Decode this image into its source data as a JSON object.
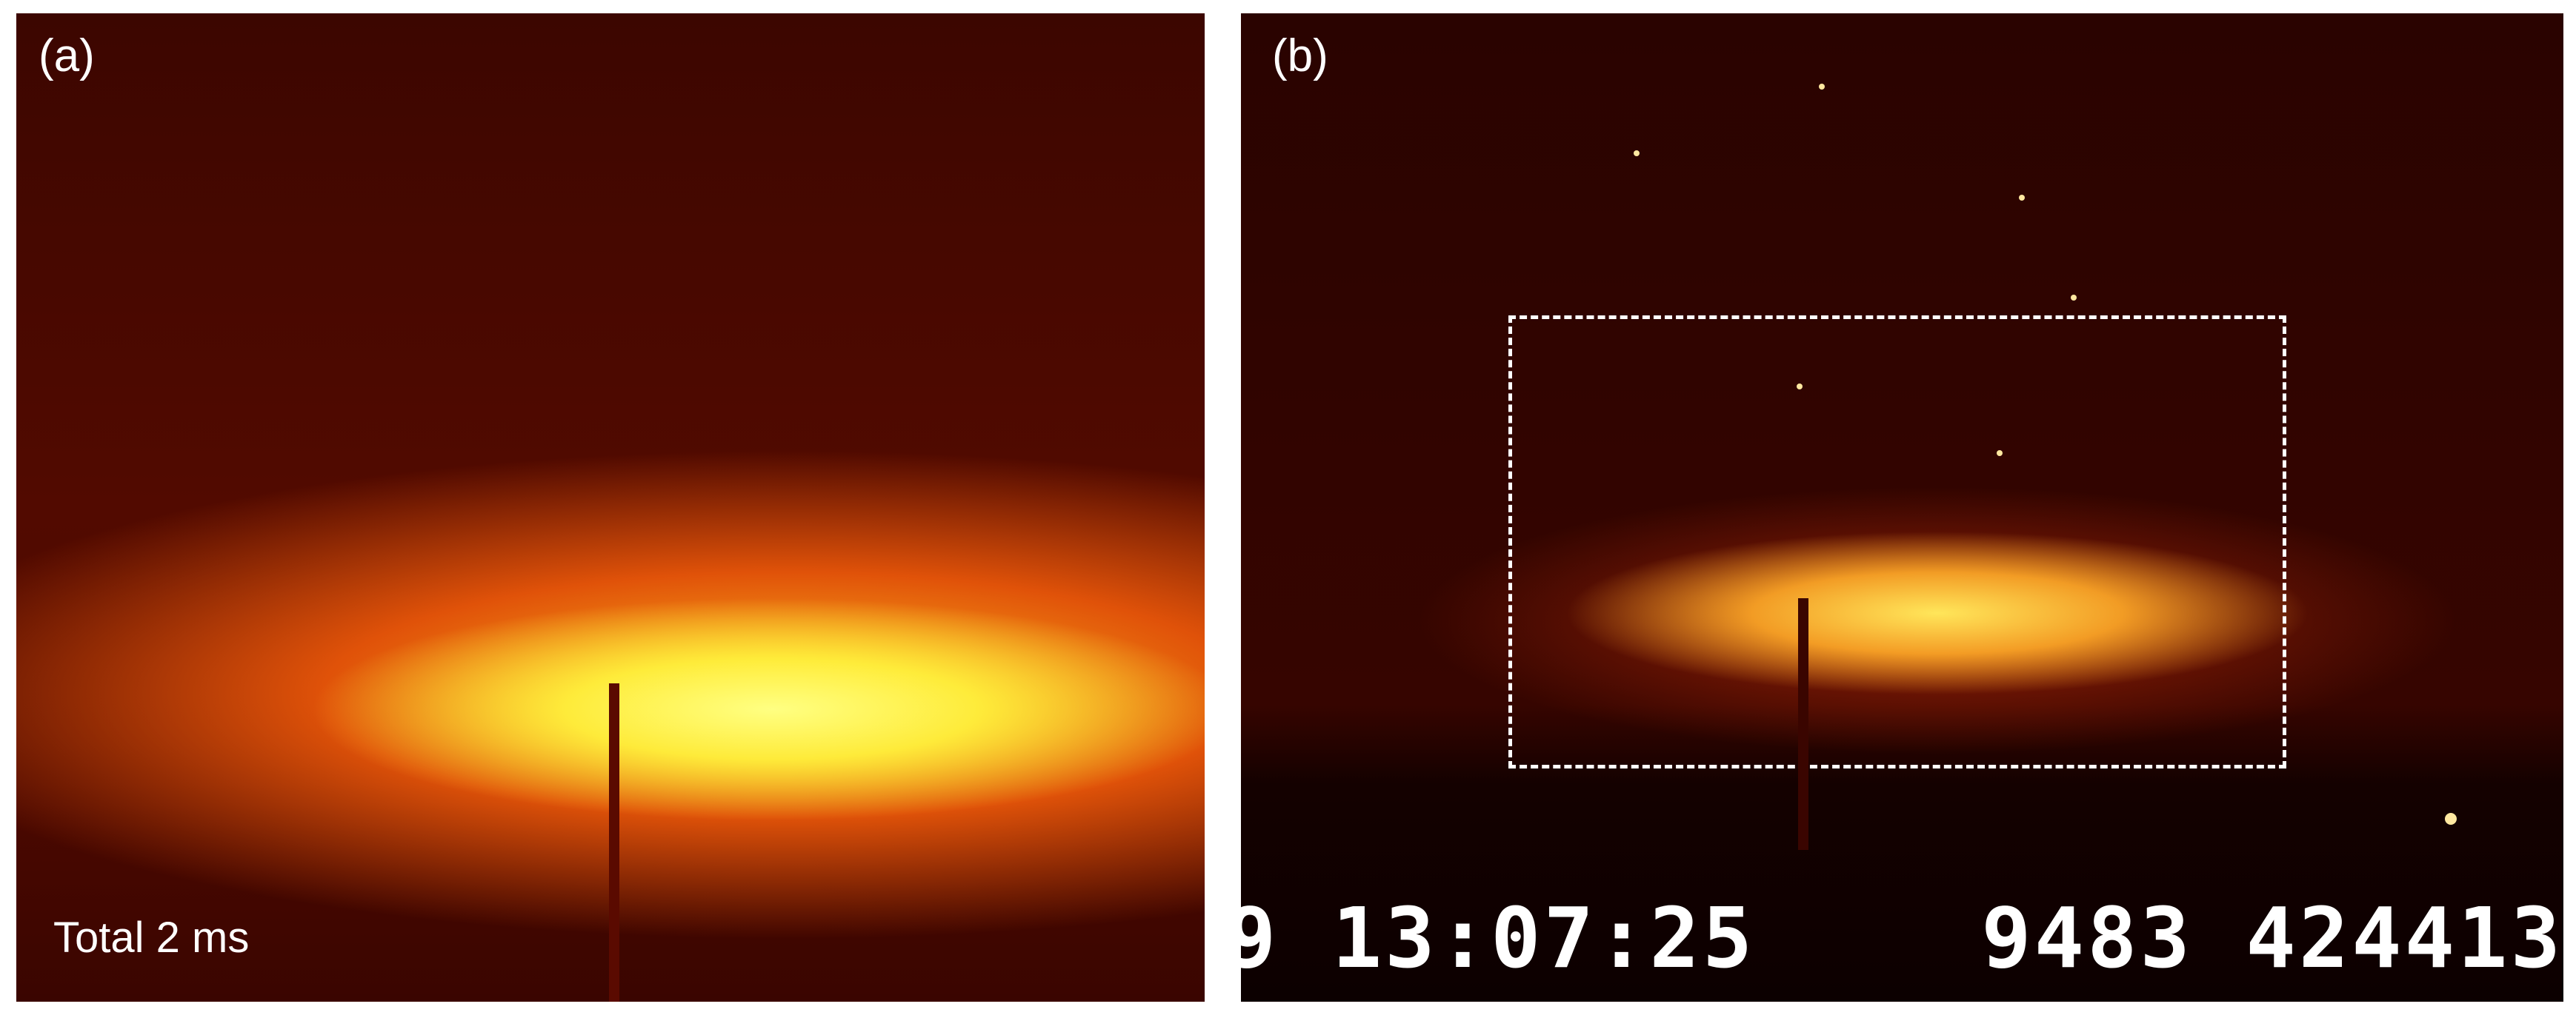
{
  "panels": [
    {
      "label": "(a)",
      "caption": "Total 2 ms"
    },
    {
      "label": "(b)",
      "overlay_left": "9 13:07:25",
      "overlay_right": "9483 424413"
    }
  ]
}
